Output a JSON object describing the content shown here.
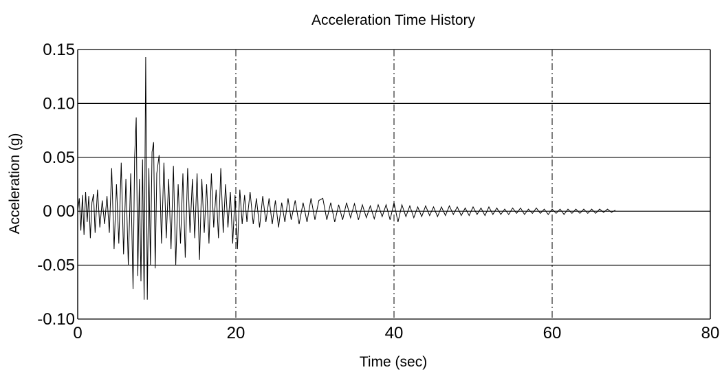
{
  "chart_data": {
    "type": "line",
    "title": "Acceleration Time History",
    "xlabel": "Time (sec)",
    "ylabel": "Acceleration (g)",
    "xlim": [
      0,
      80
    ],
    "ylim": [
      -0.1,
      0.15
    ],
    "x_ticks": [
      0,
      20,
      40,
      60,
      80
    ],
    "x_tick_labels": [
      "0",
      "20",
      "40",
      "60",
      "80"
    ],
    "y_ticks": [
      -0.1,
      -0.05,
      0.0,
      0.05,
      0.1,
      0.15
    ],
    "y_tick_labels": [
      "-0.10",
      "-0.05",
      "0 00",
      "0.05",
      "0.10",
      "0.15"
    ],
    "grid": {
      "horizontal": "solid",
      "vertical": "dash-dot"
    },
    "legend": "none",
    "series": [
      {
        "color": "#000000",
        "x": [
          0.0,
          0.2,
          0.4,
          0.6,
          0.8,
          1.0,
          1.2,
          1.4,
          1.6,
          1.8,
          2.0,
          2.2,
          2.5,
          2.8,
          3.1,
          3.4,
          3.7,
          4.0,
          4.3,
          4.6,
          4.9,
          5.2,
          5.5,
          5.8,
          6.1,
          6.4,
          6.7,
          7.0,
          7.2,
          7.4,
          7.6,
          7.8,
          8.0,
          8.2,
          8.4,
          8.6,
          8.8,
          9.0,
          9.2,
          9.4,
          9.6,
          9.8,
          10.0,
          10.3,
          10.6,
          10.9,
          11.2,
          11.5,
          11.8,
          12.1,
          12.4,
          12.7,
          13.0,
          13.3,
          13.6,
          13.9,
          14.2,
          14.5,
          14.8,
          15.1,
          15.4,
          15.7,
          16.0,
          16.3,
          16.6,
          16.9,
          17.2,
          17.5,
          17.8,
          18.1,
          18.4,
          18.7,
          19.0,
          19.3,
          19.6,
          19.9,
          20.2,
          20.5,
          20.8,
          21.1,
          21.4,
          21.8,
          22.2,
          22.6,
          23.0,
          23.4,
          23.8,
          24.2,
          24.6,
          25.0,
          25.4,
          25.8,
          26.2,
          26.6,
          27.0,
          27.5,
          28.0,
          28.5,
          29.0,
          29.5,
          30.0,
          30.5,
          31.0,
          31.5,
          32.0,
          32.5,
          33.0,
          33.5,
          34.0,
          34.5,
          35.0,
          35.5,
          36.0,
          36.5,
          37.0,
          37.5,
          38.0,
          38.5,
          39.0,
          39.5,
          40.0,
          40.5,
          41.0,
          41.5,
          42.0,
          42.5,
          43.0,
          43.5,
          44.0,
          44.5,
          45.0,
          45.5,
          46.0,
          46.5,
          47.0,
          47.5,
          48.0,
          48.5,
          49.0,
          49.5,
          50.0,
          50.5,
          51.0,
          51.5,
          52.0,
          52.5,
          53.0,
          53.5,
          54.0,
          54.5,
          55.0,
          55.5,
          56.0,
          56.5,
          57.0,
          57.5,
          58.0,
          58.5,
          59.0,
          59.5,
          60.0,
          60.5,
          61.0,
          61.5,
          62.0,
          62.5,
          63.0,
          63.5,
          64.0,
          64.5,
          65.0,
          65.5,
          66.0,
          66.5,
          67.0,
          67.5,
          68.0
        ],
        "y": [
          0.0,
          0.012,
          -0.018,
          0.015,
          -0.022,
          0.018,
          -0.01,
          0.014,
          -0.025,
          0.008,
          0.016,
          -0.02,
          0.02,
          -0.015,
          0.01,
          -0.012,
          0.014,
          -0.02,
          0.04,
          -0.035,
          0.025,
          -0.03,
          0.045,
          -0.04,
          0.03,
          -0.05,
          0.035,
          -0.072,
          0.05,
          0.087,
          -0.06,
          0.03,
          -0.065,
          0.048,
          -0.082,
          0.143,
          -0.082,
          0.04,
          -0.05,
          0.055,
          0.064,
          -0.053,
          0.035,
          0.052,
          -0.03,
          0.045,
          -0.025,
          0.03,
          -0.035,
          0.042,
          -0.05,
          0.025,
          -0.03,
          0.035,
          -0.043,
          0.04,
          -0.02,
          0.03,
          -0.025,
          0.035,
          -0.045,
          0.03,
          -0.02,
          0.025,
          -0.03,
          0.035,
          -0.015,
          0.02,
          -0.025,
          0.04,
          -0.02,
          0.025,
          -0.015,
          0.018,
          -0.03,
          0.015,
          -0.035,
          0.02,
          -0.012,
          0.015,
          -0.01,
          0.018,
          -0.012,
          0.012,
          -0.015,
          0.014,
          -0.01,
          0.012,
          -0.012,
          0.01,
          -0.015,
          0.008,
          -0.01,
          0.012,
          -0.008,
          0.01,
          -0.012,
          0.008,
          -0.01,
          0.012,
          -0.008,
          0.01,
          0.012,
          -0.008,
          0.008,
          -0.01,
          0.006,
          -0.008,
          0.008,
          -0.006,
          0.007,
          -0.008,
          0.006,
          -0.006,
          0.005,
          -0.007,
          0.006,
          -0.005,
          0.006,
          -0.008,
          0.008,
          -0.01,
          0.006,
          -0.005,
          0.005,
          -0.006,
          0.004,
          -0.005,
          0.005,
          -0.004,
          0.004,
          -0.005,
          0.004,
          -0.004,
          0.005,
          -0.003,
          0.004,
          -0.004,
          0.003,
          -0.004,
          0.004,
          -0.003,
          0.003,
          -0.004,
          0.004,
          -0.003,
          0.003,
          -0.003,
          0.002,
          -0.003,
          0.003,
          -0.002,
          0.003,
          -0.003,
          0.002,
          -0.002,
          0.003,
          -0.002,
          0.002,
          -0.003,
          0.002,
          -0.002,
          0.002,
          -0.003,
          0.002,
          -0.002,
          0.002,
          -0.002,
          0.002,
          -0.002,
          0.002,
          -0.002,
          0.002,
          -0.001,
          0.002,
          -0.001,
          0.001
        ]
      }
    ]
  }
}
